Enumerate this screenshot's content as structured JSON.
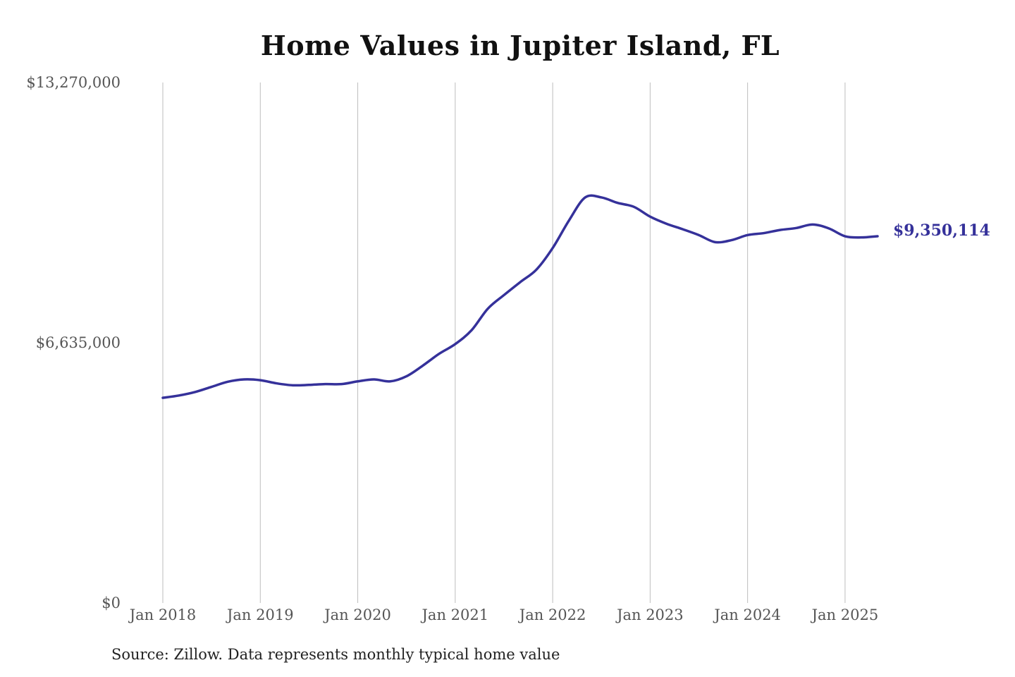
{
  "chart_data": {
    "type": "line",
    "title": "Home Values in Jupiter Island, FL",
    "footer": "Source: Zillow. Data represents monthly typical home value",
    "xlabel": "",
    "ylabel": "",
    "ylim": [
      0,
      13270000
    ],
    "xlim": [
      "2018-01",
      "2025-05"
    ],
    "y_ticks": [
      {
        "value": 0,
        "label": "$0"
      },
      {
        "value": 6635000,
        "label": "$6,635,000"
      },
      {
        "value": 13270000,
        "label": "$13,270,000"
      }
    ],
    "x_ticks": [
      {
        "value": "2018-01",
        "label": "Jan 2018"
      },
      {
        "value": "2019-01",
        "label": "Jan 2019"
      },
      {
        "value": "2020-01",
        "label": "Jan 2020"
      },
      {
        "value": "2021-01",
        "label": "Jan 2021"
      },
      {
        "value": "2022-01",
        "label": "Jan 2022"
      },
      {
        "value": "2023-01",
        "label": "Jan 2023"
      },
      {
        "value": "2024-01",
        "label": "Jan 2024"
      },
      {
        "value": "2025-01",
        "label": "Jan 2025"
      }
    ],
    "grid": {
      "vertical": true,
      "horizontal": false
    },
    "line_color": "#35319a",
    "end_label": "$9,350,114",
    "series": [
      {
        "x": [
          "2018-01",
          "2018-03",
          "2018-05",
          "2018-07",
          "2018-09",
          "2018-11",
          "2019-01",
          "2019-03",
          "2019-05",
          "2019-07",
          "2019-09",
          "2019-11",
          "2020-01",
          "2020-03",
          "2020-05",
          "2020-07",
          "2020-09",
          "2020-11",
          "2021-01",
          "2021-03",
          "2021-05",
          "2021-07",
          "2021-09",
          "2021-11",
          "2022-01",
          "2022-03",
          "2022-05",
          "2022-07",
          "2022-09",
          "2022-11",
          "2023-01",
          "2023-03",
          "2023-05",
          "2023-07",
          "2023-09",
          "2023-11",
          "2024-01",
          "2024-03",
          "2024-05",
          "2024-07",
          "2024-09",
          "2024-11",
          "2025-01",
          "2025-03",
          "2025-05"
        ],
        "values": [
          5230000,
          5290000,
          5380000,
          5510000,
          5640000,
          5700000,
          5680000,
          5600000,
          5550000,
          5560000,
          5580000,
          5580000,
          5650000,
          5700000,
          5650000,
          5780000,
          6050000,
          6350000,
          6600000,
          6950000,
          7500000,
          7850000,
          8180000,
          8500000,
          9050000,
          9750000,
          10340000,
          10340000,
          10200000,
          10100000,
          9850000,
          9670000,
          9530000,
          9380000,
          9200000,
          9250000,
          9380000,
          9430000,
          9510000,
          9560000,
          9650000,
          9550000,
          9350000,
          9320000,
          9350114
        ]
      }
    ]
  }
}
